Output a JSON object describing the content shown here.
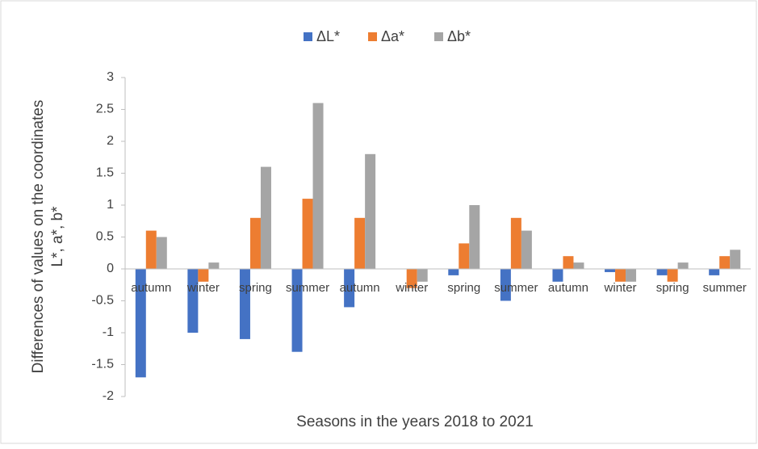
{
  "chart_data": {
    "type": "bar",
    "ylabel": [
      "Differences of values on the coordinates",
      "L*, a*, b*"
    ],
    "xlabel": "Seasons in the years 2018 to 2021",
    "categories": [
      "autumn",
      "winter",
      "spring",
      "summer",
      "autumn",
      "winter",
      "spring",
      "summer",
      "autumn",
      "winter",
      "spring",
      "summer"
    ],
    "series": [
      {
        "name": "ΔL*",
        "color": "#4472c4",
        "values": [
          -1.7,
          -1.0,
          -1.1,
          -1.3,
          -0.6,
          0,
          -0.1,
          -0.5,
          -0.2,
          -0.05,
          -0.1,
          -0.1
        ]
      },
      {
        "name": "Δa*",
        "color": "#ed7d31",
        "values": [
          0.6,
          -0.2,
          0.8,
          1.1,
          0.8,
          -0.3,
          0.4,
          0.8,
          0.2,
          -0.2,
          -0.2,
          0.2
        ]
      },
      {
        "name": "Δb*",
        "color": "#a5a5a5",
        "values": [
          0.5,
          0.1,
          1.6,
          2.6,
          1.8,
          -0.2,
          1.0,
          0.6,
          0.1,
          -0.2,
          0.1,
          0.3
        ]
      }
    ],
    "ylim": [
      -2,
      3
    ],
    "yticks": [
      -2,
      -1.5,
      -1,
      -0.5,
      0,
      0.5,
      1,
      1.5,
      2,
      2.5,
      3
    ],
    "grid": false,
    "legend": "top"
  }
}
